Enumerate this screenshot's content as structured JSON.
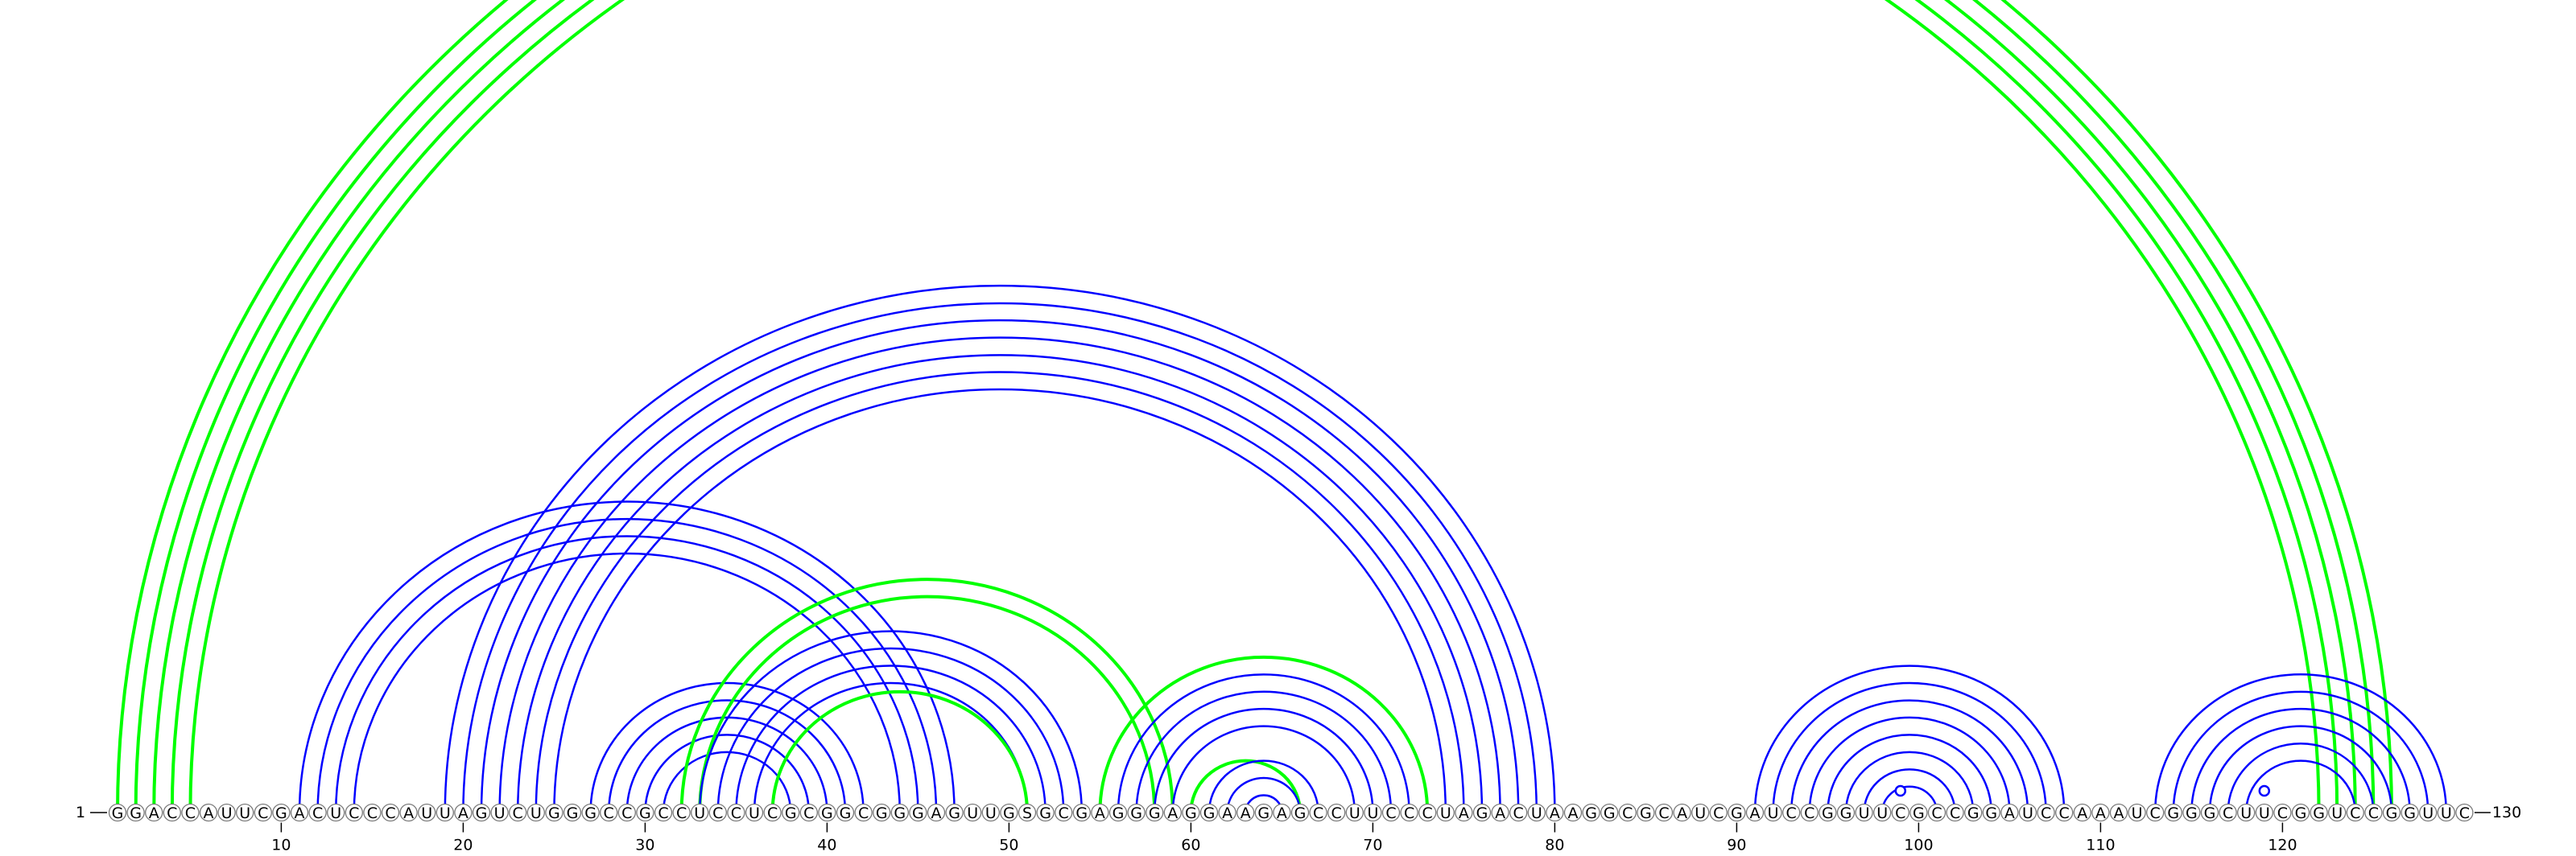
{
  "diagram": {
    "sequence": "GGACCAUUCGACUCCCAUUAGUCUGGGCCGCCUCCUCGCGGCGGGAGUUGSGCGAGGGAGGAAGAGCCUUCCCUAGACUAAGGCGCAUCGAUCCGGUUCGCCGGAUCCAAAUCGGGCUUCGGUCCGGUUC",
    "start_label": "1",
    "end_label": "130",
    "ticks": [
      "10",
      "20",
      "30",
      "40",
      "50",
      "60",
      "70",
      "80",
      "90",
      "100",
      "110",
      "120"
    ],
    "colors": {
      "blue": "#0000ff",
      "green": "#00ff00"
    },
    "arc_groups": [
      {
        "color": "green",
        "pairs": [
          [
            1,
            126
          ],
          [
            2,
            125
          ],
          [
            3,
            124
          ],
          [
            4,
            123
          ],
          [
            5,
            122
          ]
        ]
      },
      {
        "color": "blue",
        "pairs": [
          [
            11,
            47
          ],
          [
            12,
            46
          ],
          [
            13,
            45
          ],
          [
            14,
            44
          ]
        ]
      },
      {
        "color": "blue",
        "pairs": [
          [
            19,
            80
          ],
          [
            20,
            79
          ],
          [
            21,
            78
          ],
          [
            22,
            77
          ],
          [
            23,
            76
          ],
          [
            24,
            75
          ],
          [
            25,
            74
          ]
        ]
      },
      {
        "color": "blue",
        "pairs": [
          [
            27,
            42
          ],
          [
            28,
            41
          ],
          [
            29,
            40
          ],
          [
            30,
            39
          ],
          [
            31,
            38
          ]
        ]
      },
      {
        "color": "green",
        "pairs": [
          [
            32,
            59
          ],
          [
            33,
            58
          ]
        ]
      },
      {
        "color": "blue",
        "pairs": [
          [
            33,
            54
          ],
          [
            34,
            53
          ],
          [
            35,
            52
          ],
          [
            36,
            51
          ]
        ]
      },
      {
        "color": "green",
        "pairs": [
          [
            37,
            51
          ]
        ]
      },
      {
        "color": "blue",
        "pairs": [
          [
            56,
            72
          ],
          [
            57,
            71
          ],
          [
            58,
            70
          ],
          [
            59,
            69
          ]
        ]
      },
      {
        "color": "green",
        "pairs": [
          [
            55,
            73
          ],
          [
            60,
            66
          ]
        ]
      },
      {
        "color": "blue",
        "pairs": [
          [
            61,
            67
          ],
          [
            62,
            66
          ],
          [
            63,
            65
          ]
        ]
      },
      {
        "color": "blue",
        "pairs": [
          [
            91,
            108
          ],
          [
            92,
            107
          ],
          [
            93,
            106
          ],
          [
            94,
            105
          ],
          [
            95,
            104
          ],
          [
            96,
            103
          ],
          [
            97,
            102
          ],
          [
            98,
            101
          ]
        ]
      },
      {
        "color": "blue",
        "pairs": [
          [
            113,
            129
          ],
          [
            114,
            128
          ],
          [
            115,
            127
          ],
          [
            116,
            126
          ],
          [
            117,
            125
          ],
          [
            118,
            124
          ]
        ]
      }
    ],
    "loop_markers": [
      99,
      119
    ]
  }
}
